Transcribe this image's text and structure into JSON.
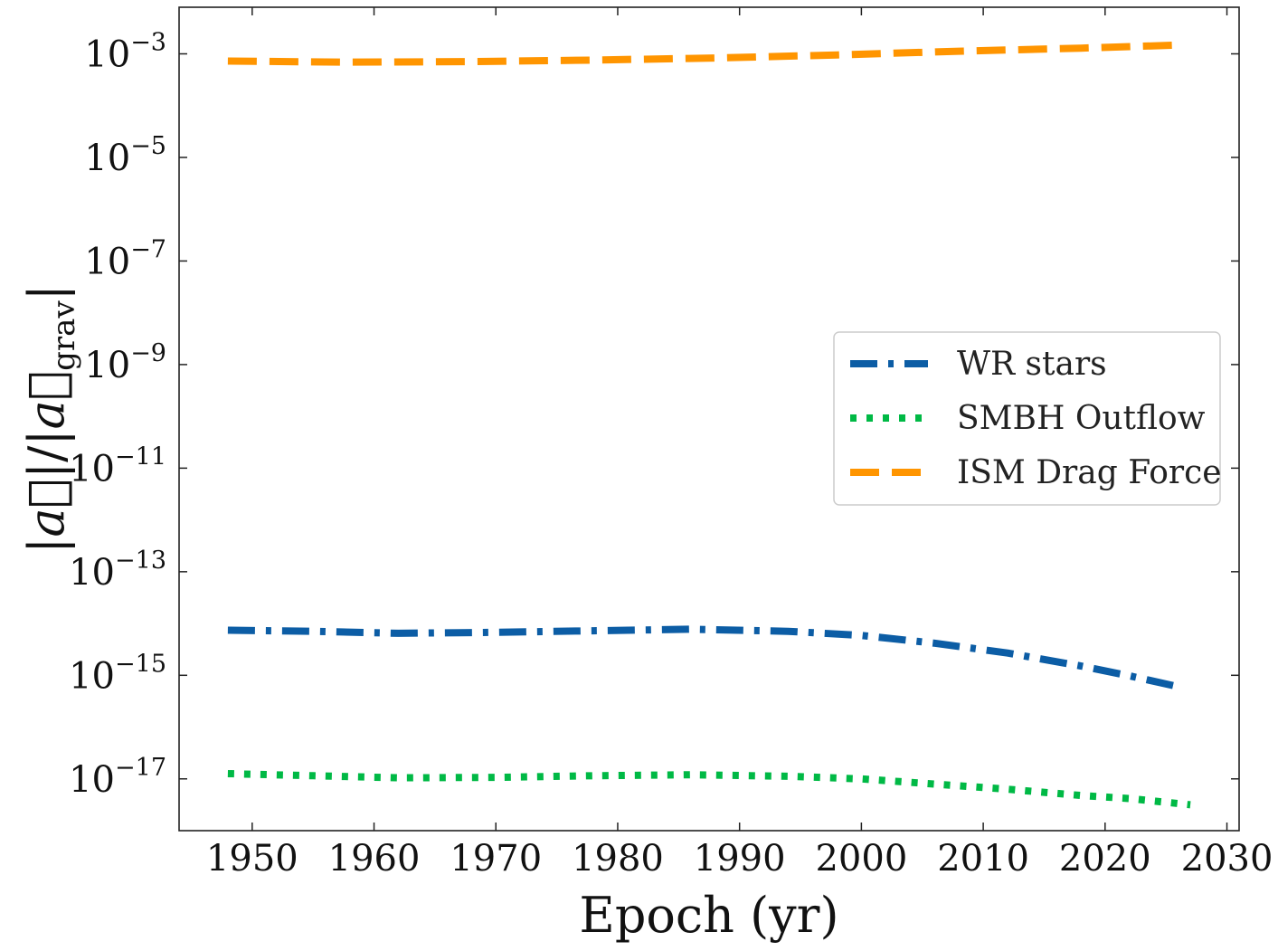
{
  "chart_data": {
    "type": "line",
    "title": "",
    "xlabel": "Epoch (yr)",
    "ylabel": "|a⃗|/|a⃗_grav|",
    "ylabel_parts": {
      "open": "|",
      "vec": "a⃗",
      "mid": "|/|",
      "vec2": "a⃗",
      "sub": "grav",
      "close": "|"
    },
    "xscale": "linear",
    "yscale": "log",
    "xlim": [
      1944,
      2031
    ],
    "ylim_log10": [
      -18.0,
      -2.1
    ],
    "xticks": [
      1950,
      1960,
      1970,
      1980,
      1990,
      2000,
      2010,
      2020,
      2030
    ],
    "yticks": [
      {
        "base": "10",
        "exp": "−3",
        "value_log10": -3
      },
      {
        "base": "10",
        "exp": "−5",
        "value_log10": -5
      },
      {
        "base": "10",
        "exp": "−7",
        "value_log10": -7
      },
      {
        "base": "10",
        "exp": "−9",
        "value_log10": -9
      },
      {
        "base": "10",
        "exp": "−11",
        "value_log10": -11
      },
      {
        "base": "10",
        "exp": "−13",
        "value_log10": -13
      },
      {
        "base": "10",
        "exp": "−15",
        "value_log10": -15
      },
      {
        "base": "10",
        "exp": "−17",
        "value_log10": -17
      }
    ],
    "legend_position": "center-right",
    "series": [
      {
        "name": "WR stars",
        "color": "#0c5da5",
        "style": "dashdot",
        "x": [
          1948,
          1955,
          1962,
          1970,
          1978,
          1986,
          1994,
          2000,
          2006,
          2012,
          2018,
          2022,
          2026
        ],
        "log10_y": [
          -14.13,
          -14.15,
          -14.19,
          -14.17,
          -14.14,
          -14.11,
          -14.15,
          -14.23,
          -14.38,
          -14.57,
          -14.82,
          -15.01,
          -15.22
        ]
      },
      {
        "name": "SMBH Outflow",
        "color": "#00b945",
        "style": "dotted",
        "x": [
          1948,
          1955,
          1962,
          1970,
          1978,
          1986,
          1994,
          2000,
          2006,
          2012,
          2018,
          2022,
          2027
        ],
        "log10_y": [
          -16.9,
          -16.94,
          -16.98,
          -16.97,
          -16.94,
          -16.92,
          -16.95,
          -17.0,
          -17.1,
          -17.2,
          -17.32,
          -17.38,
          -17.5
        ]
      },
      {
        "name": "ISM Drag Force",
        "color": "#ff9500",
        "style": "dashed",
        "x": [
          1948,
          1958,
          1968,
          1978,
          1988,
          1998,
          2008,
          2018,
          2026
        ],
        "log10_y": [
          -3.14,
          -3.16,
          -3.15,
          -3.12,
          -3.08,
          -3.02,
          -2.95,
          -2.89,
          -2.83
        ]
      }
    ]
  }
}
